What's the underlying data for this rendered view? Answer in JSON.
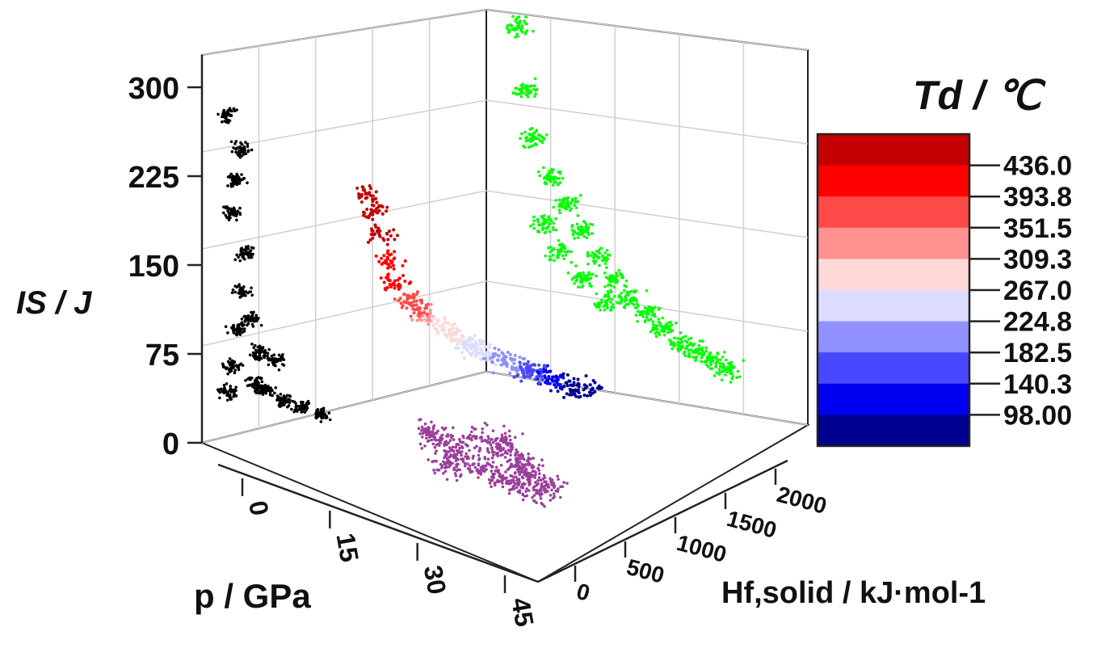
{
  "chart_data": {
    "type": "scatter3d",
    "axes": {
      "z": {
        "label": "IS / J",
        "ticks": [
          "0",
          "75",
          "150",
          "225",
          "300"
        ],
        "range": [
          0,
          300
        ]
      },
      "x": {
        "label": "p / GPa",
        "ticks": [
          "0",
          "15",
          "30",
          "45"
        ],
        "range": [
          0,
          45
        ]
      },
      "y": {
        "label": "Hf,solid / kJ·mol-1",
        "ticks": [
          "0",
          "500",
          "1000",
          "1500",
          "2000"
        ],
        "range": [
          0,
          2000
        ]
      }
    },
    "colorbar": {
      "title": "Td / ℃",
      "ticks": [
        "436.0",
        "393.8",
        "351.5",
        "309.3",
        "267.0",
        "224.8",
        "182.5",
        "140.3",
        "98.00"
      ],
      "colors": [
        "#c40000",
        "#ff0000",
        "#ff4848",
        "#ff9090",
        "#ffd8d8",
        "#dcdcff",
        "#9090ff",
        "#4848ff",
        "#0000f0",
        "#000090"
      ]
    },
    "series": [
      {
        "projection": "IS vs p (back wall)",
        "color": "#000000",
        "points": [
          [
            2,
            40
          ],
          [
            3,
            60
          ],
          [
            4,
            90
          ],
          [
            5,
            120
          ],
          [
            6,
            150
          ],
          [
            3,
            180
          ],
          [
            4,
            205
          ],
          [
            5,
            230
          ],
          [
            2,
            255
          ],
          [
            8,
            50
          ],
          [
            10,
            45
          ],
          [
            14,
            40
          ],
          [
            18,
            38
          ],
          [
            22,
            35
          ],
          [
            12,
            70
          ],
          [
            7,
            100
          ],
          [
            9,
            75
          ]
        ]
      },
      {
        "projection": "IS vs Hf,solid (side wall)",
        "color": "#00ff00",
        "points": [
          [
            200,
            290
          ],
          [
            250,
            240
          ],
          [
            300,
            200
          ],
          [
            400,
            170
          ],
          [
            500,
            150
          ],
          [
            600,
            130
          ],
          [
            700,
            110
          ],
          [
            800,
            95
          ],
          [
            900,
            80
          ],
          [
            1000,
            70
          ],
          [
            1100,
            60
          ],
          [
            1200,
            50
          ],
          [
            1300,
            45
          ],
          [
            1400,
            40
          ],
          [
            1500,
            35
          ],
          [
            350,
            130
          ],
          [
            450,
            110
          ],
          [
            600,
            90
          ],
          [
            750,
            75
          ]
        ]
      },
      {
        "projection": "p vs Hf,solid (floor)",
        "color": "#9b3f9b",
        "points": [
          [
            5,
            1200
          ],
          [
            10,
            1100
          ],
          [
            15,
            1000
          ],
          [
            20,
            900
          ],
          [
            25,
            850
          ],
          [
            30,
            800
          ],
          [
            35,
            750
          ],
          [
            40,
            700
          ],
          [
            12,
            1300
          ],
          [
            18,
            1250
          ],
          [
            24,
            1150
          ],
          [
            28,
            1050
          ],
          [
            32,
            950
          ],
          [
            38,
            900
          ],
          [
            22,
            700
          ],
          [
            15,
            1400
          ]
        ]
      },
      {
        "projection": "3D points colored by Td",
        "color": "scale",
        "points": [
          [
            5,
            300,
            250,
            420
          ],
          [
            8,
            400,
            200,
            410
          ],
          [
            10,
            450,
            170,
            400
          ],
          [
            12,
            500,
            140,
            380
          ],
          [
            15,
            600,
            120,
            350
          ],
          [
            18,
            700,
            100,
            320
          ],
          [
            20,
            800,
            90,
            300
          ],
          [
            22,
            900,
            80,
            280
          ],
          [
            25,
            1000,
            70,
            260
          ],
          [
            28,
            1100,
            60,
            240
          ],
          [
            30,
            1200,
            55,
            220
          ],
          [
            33,
            1300,
            50,
            200
          ],
          [
            35,
            1400,
            45,
            180
          ],
          [
            38,
            1500,
            40,
            160
          ],
          [
            40,
            1600,
            35,
            140
          ],
          [
            42,
            1700,
            30,
            120
          ],
          [
            44,
            1800,
            25,
            105
          ],
          [
            6,
            350,
            230,
            430
          ],
          [
            14,
            650,
            110,
            340
          ],
          [
            26,
            1050,
            65,
            250
          ],
          [
            36,
            1450,
            42,
            170
          ]
        ]
      }
    ]
  }
}
